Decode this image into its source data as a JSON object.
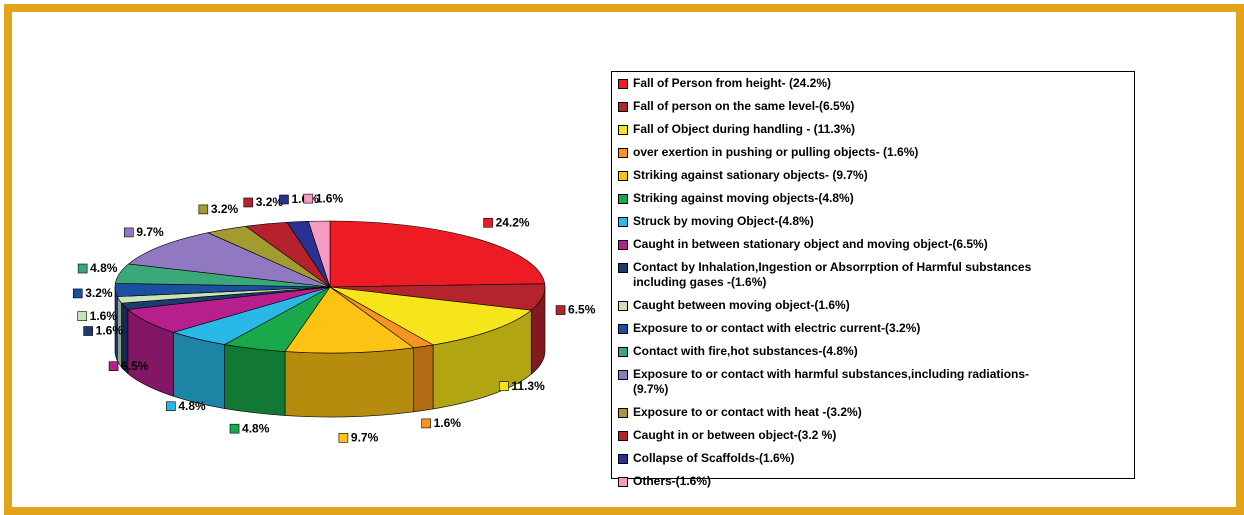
{
  "chart_data": {
    "type": "pie",
    "categories": [
      "Fall of Person from height- (24.2%)",
      "Fall of person on the same level-(6.5%)",
      "Fall of Object during handling - (11.3%)",
      "over exertion in pushing or pulling objects- (1.6%)",
      "Striking against sationary objects- (9.7%)",
      "Striking against moving objects-(4.8%)",
      " Struck by moving Object-(4.8%)",
      "Caught in between stationary object and moving object-(6.5%)",
      "Contact by Inhalation,Ingestion or Absorrption of Harmful substances including gases -(1.6%)",
      "Caught between moving object-(1.6%)",
      "Exposure to or contact with electric current-(3.2%)",
      "Contact with fire,hot substances-(4.8%)",
      "Exposure to or contact with harmful substances,including radiations-(9.7%)",
      "Exposure to or contact with heat -(3.2%)",
      "Caught in or between object-(3.2 %)",
      "Collapse of Scaffolds-(1.6%)",
      "Others-(1.6%)"
    ],
    "values": [
      24.2,
      6.5,
      11.3,
      1.6,
      9.7,
      4.8,
      4.8,
      6.5,
      1.6,
      1.6,
      3.2,
      4.8,
      9.7,
      3.2,
      3.2,
      1.6,
      1.6
    ],
    "value_labels": [
      "24.2%",
      "6.5%",
      "11.3%",
      "1.6%",
      "9.7%",
      "4.8%",
      "4.8%",
      "6.5%",
      "1.6%",
      "1.6%",
      "3.2%",
      "4.8%",
      "9.7%",
      "3.2%",
      "3.2%",
      "1.6%",
      "1.6%"
    ],
    "colors": [
      "#ed1c24",
      "#b3242c",
      "#f7e51b",
      "#f7941d",
      "#fcc214",
      "#19a84a",
      "#2ab8e6",
      "#b61f8c",
      "#1e3a70",
      "#c8e3b8",
      "#1b4fa0",
      "#3aa878",
      "#9079c0",
      "#a39a30",
      "#b5222e",
      "#2b3192",
      "#f59bc2"
    ],
    "legend": "right"
  }
}
